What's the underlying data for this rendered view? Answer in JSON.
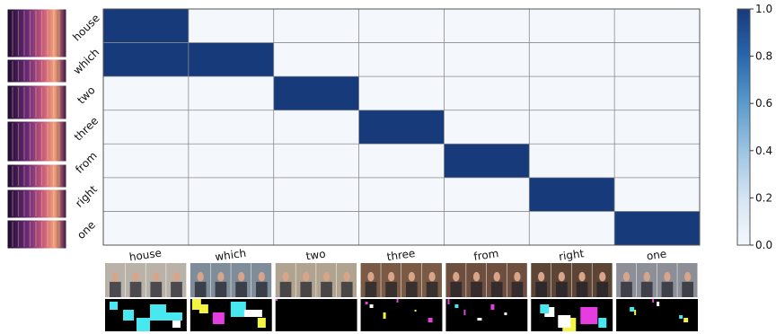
{
  "chart_data": {
    "type": "heatmap",
    "title": "",
    "xlabel": "",
    "ylabel": "",
    "x_categories": [
      "house",
      "which",
      "two",
      "three",
      "from",
      "right",
      "one"
    ],
    "y_categories": [
      "house",
      "which",
      "two",
      "three",
      "from",
      "right",
      "one"
    ],
    "values": [
      [
        1,
        0,
        0,
        0,
        0,
        0,
        0
      ],
      [
        1,
        1,
        0,
        0,
        0,
        0,
        0
      ],
      [
        0,
        0,
        1,
        0,
        0,
        0,
        0
      ],
      [
        0,
        0,
        0,
        1,
        0,
        0,
        0
      ],
      [
        0,
        0,
        0,
        0,
        1,
        0,
        0
      ],
      [
        0,
        0,
        0,
        0,
        0,
        1,
        0
      ],
      [
        0,
        0,
        0,
        0,
        0,
        0,
        1
      ]
    ],
    "colorbar": {
      "range": [
        0.0,
        1.0
      ],
      "ticks": [
        "0.0",
        "0.2",
        "0.4",
        "0.6",
        "0.8",
        "1.0"
      ],
      "color_low": "#f4f8fd",
      "color_high": "#173a7a"
    },
    "grid": true,
    "row_images": "spectrogram thumbnails (left)",
    "column_images": "video frame strips with segmentation masks (bottom)"
  }
}
